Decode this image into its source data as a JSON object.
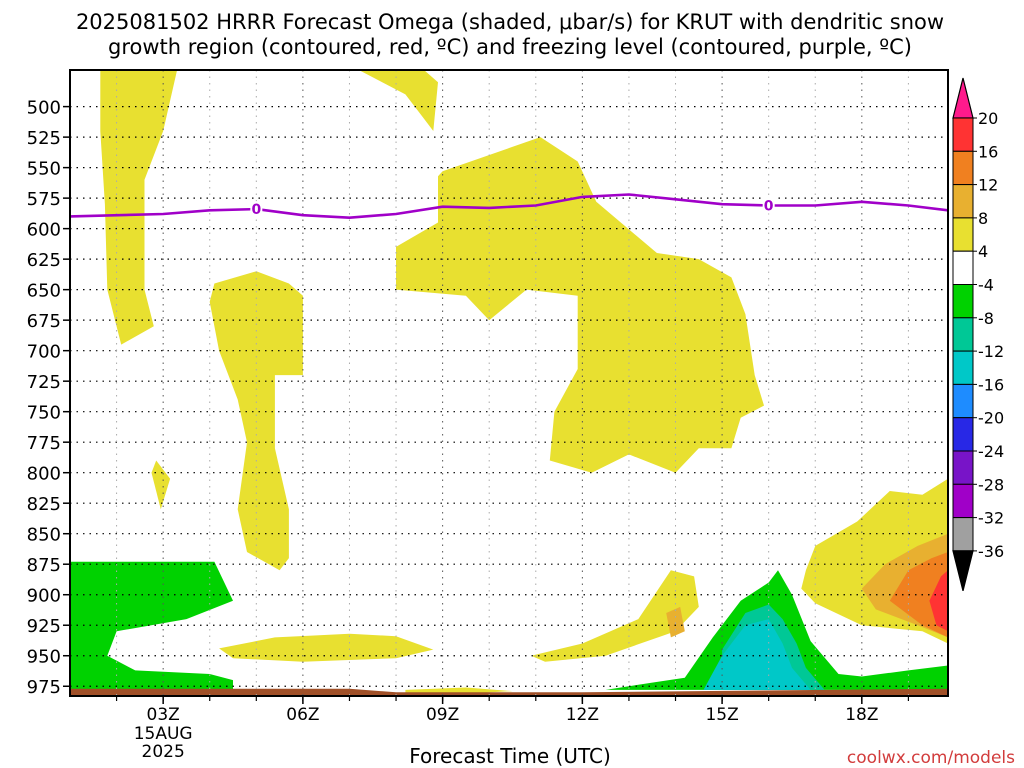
{
  "chart_data": {
    "type": "heatmap",
    "title_line1": "2025081502 HRRR Forecast Omega (shaded, μbar/s) for KRUT with dendritic snow",
    "title_line2": "growth region (contoured, red, ºC) and freezing level (contoured, purple, ºC)",
    "xlabel": "Forecast Time (UTC)",
    "credit": "coolwx.com/models",
    "x_range": [
      1.0,
      19.85
    ],
    "y_range": [
      983,
      470
    ],
    "y_ticks": [
      500,
      525,
      550,
      575,
      600,
      625,
      650,
      675,
      700,
      725,
      750,
      775,
      800,
      825,
      850,
      875,
      900,
      925,
      950,
      975
    ],
    "x_ticks": [
      {
        "value": 3,
        "label": "03Z",
        "sub1": "15AUG",
        "sub2": "2025"
      },
      {
        "value": 6,
        "label": "06Z"
      },
      {
        "value": 9,
        "label": "09Z"
      },
      {
        "value": 12,
        "label": "12Z"
      },
      {
        "value": 15,
        "label": "15Z"
      },
      {
        "value": 18,
        "label": "18Z"
      }
    ],
    "colorbar": {
      "labels": [
        "20",
        "16",
        "12",
        "8",
        "4",
        "-4",
        "-8",
        "-12",
        "-16",
        "-20",
        "-24",
        "-28",
        "-32",
        "-36"
      ],
      "colors": [
        "#ff1a8c",
        "#ff3333",
        "#f08020",
        "#e8b030",
        "#e8e030",
        "#ffffff",
        "#00d200",
        "#00c896",
        "#00c8c8",
        "#1e8cff",
        "#2828e6",
        "#7814c8",
        "#a000c8",
        "#a0a0a0",
        "#000000"
      ]
    },
    "freezing_level": {
      "label": "0",
      "color": "#a000c8",
      "points": [
        [
          1.0,
          590
        ],
        [
          3.0,
          588
        ],
        [
          4.0,
          585
        ],
        [
          5.0,
          584
        ],
        [
          6.0,
          589
        ],
        [
          7.0,
          591
        ],
        [
          8.0,
          588
        ],
        [
          9.0,
          582
        ],
        [
          10.0,
          583
        ],
        [
          11.0,
          581
        ],
        [
          12.0,
          574
        ],
        [
          13.0,
          572
        ],
        [
          14.0,
          576
        ],
        [
          15.0,
          580
        ],
        [
          16.0,
          581
        ],
        [
          17.0,
          581
        ],
        [
          18.0,
          578
        ],
        [
          19.0,
          581
        ],
        [
          19.85,
          585
        ]
      ],
      "label_positions": [
        5.0,
        16.0
      ]
    },
    "regions": [
      {
        "name": "upward-4-8",
        "color": "#e8e030",
        "points": [
          [
            1.65,
            470
          ],
          [
            3.3,
            470
          ],
          [
            3.0,
            520
          ],
          [
            2.6,
            560
          ],
          [
            2.6,
            650
          ],
          [
            2.8,
            680
          ],
          [
            2.1,
            695
          ],
          [
            1.8,
            650
          ],
          [
            1.75,
            580
          ],
          [
            1.65,
            520
          ]
        ]
      },
      {
        "name": "upward-4-8",
        "color": "#e8e030",
        "points": [
          [
            7.2,
            470
          ],
          [
            8.6,
            470
          ],
          [
            8.9,
            480
          ],
          [
            8.8,
            520
          ],
          [
            8.6,
            510
          ],
          [
            8.2,
            490
          ]
        ]
      },
      {
        "name": "upward-4-8",
        "color": "#e8e030",
        "points": [
          [
            4.1,
            645
          ],
          [
            5.0,
            635
          ],
          [
            5.7,
            645
          ],
          [
            6.0,
            655
          ],
          [
            6.0,
            720
          ],
          [
            5.4,
            720
          ],
          [
            5.4,
            780
          ],
          [
            5.7,
            830
          ],
          [
            5.7,
            870
          ],
          [
            5.5,
            880
          ],
          [
            4.8,
            865
          ],
          [
            4.6,
            830
          ],
          [
            4.8,
            775
          ],
          [
            4.6,
            740
          ],
          [
            4.2,
            700
          ],
          [
            4.0,
            660
          ]
        ]
      },
      {
        "name": "upward-4-8",
        "color": "#e8e030",
        "points": [
          [
            2.85,
            790
          ],
          [
            3.15,
            805
          ],
          [
            2.95,
            830
          ],
          [
            2.75,
            800
          ]
        ]
      },
      {
        "name": "upward-4-8",
        "color": "#e8e030",
        "points": [
          [
            8.9,
            557
          ],
          [
            9.0,
            553
          ],
          [
            11.1,
            525
          ],
          [
            11.9,
            545
          ],
          [
            12.3,
            578
          ],
          [
            13.6,
            620
          ],
          [
            14.5,
            625
          ],
          [
            15.2,
            640
          ],
          [
            15.5,
            670
          ],
          [
            15.7,
            720
          ],
          [
            15.9,
            745
          ],
          [
            15.4,
            755
          ],
          [
            15.2,
            780
          ],
          [
            14.5,
            780
          ],
          [
            14.0,
            800
          ],
          [
            13.0,
            785
          ],
          [
            12.2,
            800
          ],
          [
            11.3,
            790
          ],
          [
            11.4,
            750
          ],
          [
            11.9,
            715
          ],
          [
            11.9,
            655
          ],
          [
            10.8,
            650
          ],
          [
            10.0,
            675
          ],
          [
            9.5,
            655
          ],
          [
            8.0,
            650
          ],
          [
            8.0,
            615
          ],
          [
            8.9,
            595
          ]
        ]
      },
      {
        "name": "upward-4-8",
        "color": "#e8e030",
        "points": [
          [
            4.2,
            944
          ],
          [
            5.4,
            935
          ],
          [
            7.0,
            932
          ],
          [
            8.0,
            934
          ],
          [
            8.8,
            945
          ],
          [
            8.0,
            952
          ],
          [
            6.0,
            955
          ],
          [
            4.5,
            952
          ]
        ]
      },
      {
        "name": "upward-4-8",
        "color": "#e8e030",
        "points": [
          [
            8.2,
            978
          ],
          [
            9.5,
            976
          ],
          [
            10.5,
            979
          ],
          [
            9.5,
            981
          ],
          [
            8.2,
            981
          ]
        ]
      },
      {
        "name": "upward-4-8",
        "color": "#e8e030",
        "points": [
          [
            10.9,
            950
          ],
          [
            12.0,
            940
          ],
          [
            13.2,
            920
          ],
          [
            13.9,
            880
          ],
          [
            14.4,
            885
          ],
          [
            14.5,
            910
          ],
          [
            14.0,
            930
          ],
          [
            12.5,
            950
          ],
          [
            11.2,
            955
          ]
        ]
      },
      {
        "name": "upward-8-12",
        "color": "#e8b030",
        "points": [
          [
            13.8,
            915
          ],
          [
            14.1,
            910
          ],
          [
            14.2,
            930
          ],
          [
            13.9,
            935
          ]
        ]
      },
      {
        "name": "upward-4-8",
        "color": "#e8e030",
        "points": [
          [
            16.8,
            880
          ],
          [
            17.0,
            860
          ],
          [
            17.9,
            840
          ],
          [
            18.6,
            815
          ],
          [
            19.3,
            818
          ],
          [
            19.85,
            805
          ],
          [
            19.85,
            940
          ],
          [
            19.3,
            930
          ],
          [
            18.0,
            925
          ],
          [
            17.0,
            907
          ],
          [
            16.7,
            895
          ]
        ]
      },
      {
        "name": "upward-8-12",
        "color": "#e8b030",
        "points": [
          [
            18.0,
            895
          ],
          [
            18.5,
            875
          ],
          [
            19.2,
            860
          ],
          [
            19.85,
            850
          ],
          [
            19.85,
            935
          ],
          [
            19.2,
            925
          ],
          [
            18.3,
            912
          ]
        ]
      },
      {
        "name": "upward-12-16",
        "color": "#f08020",
        "points": [
          [
            18.6,
            905
          ],
          [
            19.0,
            880
          ],
          [
            19.5,
            870
          ],
          [
            19.85,
            865
          ],
          [
            19.85,
            935
          ],
          [
            19.3,
            925
          ]
        ]
      },
      {
        "name": "upward-16-20",
        "color": "#ff3333",
        "points": [
          [
            19.45,
            905
          ],
          [
            19.7,
            885
          ],
          [
            19.85,
            880
          ],
          [
            19.85,
            930
          ],
          [
            19.6,
            925
          ]
        ]
      },
      {
        "name": "downward-4-8",
        "color": "#00d200",
        "points": [
          [
            1.0,
            873
          ],
          [
            4.1,
            873
          ],
          [
            4.5,
            905
          ],
          [
            3.5,
            920
          ],
          [
            2.0,
            930
          ],
          [
            1.8,
            950
          ],
          [
            2.4,
            962
          ],
          [
            4.0,
            965
          ],
          [
            4.5,
            970
          ],
          [
            4.5,
            978
          ],
          [
            1.0,
            978
          ]
        ]
      },
      {
        "name": "downward-4-8",
        "color": "#00d200",
        "points": [
          [
            12.5,
            978
          ],
          [
            13.5,
            972
          ],
          [
            14.2,
            968
          ],
          [
            14.8,
            935
          ],
          [
            15.4,
            905
          ],
          [
            16.0,
            890
          ],
          [
            16.2,
            880
          ],
          [
            16.5,
            900
          ],
          [
            16.9,
            938
          ],
          [
            17.5,
            965
          ],
          [
            18.0,
            967
          ],
          [
            19.0,
            962
          ],
          [
            19.85,
            958
          ],
          [
            19.85,
            978
          ]
        ]
      },
      {
        "name": "downward-8-12",
        "color": "#00c896",
        "points": [
          [
            15.0,
            978
          ],
          [
            15.0,
            945
          ],
          [
            15.5,
            915
          ],
          [
            16.0,
            908
          ],
          [
            16.3,
            920
          ],
          [
            16.6,
            940
          ],
          [
            16.8,
            960
          ],
          [
            17.2,
            978
          ]
        ]
      },
      {
        "name": "downward-12-16",
        "color": "#00c8c8",
        "points": [
          [
            14.6,
            978
          ],
          [
            15.0,
            950
          ],
          [
            15.5,
            925
          ],
          [
            16.0,
            920
          ],
          [
            16.3,
            940
          ],
          [
            16.5,
            960
          ],
          [
            16.9,
            978
          ]
        ]
      },
      {
        "name": "terrain",
        "color": "#a05028",
        "points": [
          [
            1.0,
            977
          ],
          [
            7.0,
            977
          ],
          [
            8.0,
            980
          ],
          [
            12.0,
            980
          ],
          [
            19.85,
            977
          ],
          [
            19.85,
            983
          ],
          [
            1.0,
            983
          ]
        ]
      }
    ]
  }
}
